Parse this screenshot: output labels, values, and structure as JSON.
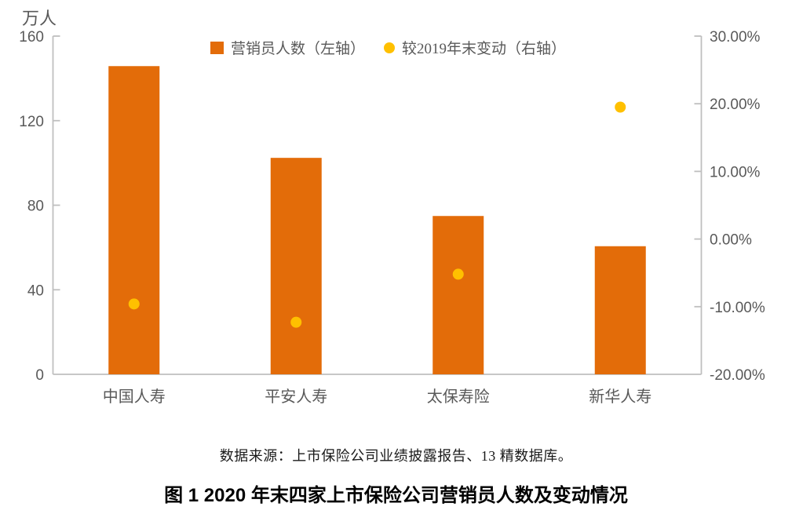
{
  "chart_data": {
    "type": "bar",
    "subtype": "bar-left-axis with scatter-right-axis combo",
    "categories": [
      "中国人寿",
      "平安人寿",
      "太保寿险",
      "新华人寿"
    ],
    "series": [
      {
        "name": "营销员人数（左轴）",
        "type": "bar",
        "axis": "left",
        "values": [
          145.8,
          102.4,
          74.9,
          60.6
        ],
        "color": "#E36C09"
      },
      {
        "name": "较2019年末变动（右轴）",
        "type": "scatter",
        "axis": "right",
        "values": [
          -9.6,
          -12.3,
          -5.2,
          19.5
        ],
        "color": "#FFC000"
      }
    ],
    "left_axis": {
      "unit": "万人",
      "min": 0,
      "max": 160,
      "tick_values": [
        0,
        40,
        80,
        120,
        160
      ],
      "tick_labels": [
        "0",
        "40",
        "80",
        "120",
        "160"
      ]
    },
    "right_axis": {
      "min": -20,
      "max": 30,
      "tick_values": [
        -20,
        -10,
        0,
        10,
        20,
        30
      ],
      "tick_labels": [
        "-20.00%",
        "-10.00%",
        "0.00%",
        "10.00%",
        "20.00%",
        "30.00%"
      ]
    },
    "grid": "off",
    "legend_position": "top-inside",
    "colors": {
      "bar": "#E36C09",
      "dot": "#FFC000",
      "axis_line": "#BFBFBF",
      "axis_text": "#595959"
    }
  },
  "footer": {
    "source": "数据来源：上市保险公司业绩披露报告、13 精数据库。",
    "caption": "图 1    2020 年末四家上市保险公司营销员人数及变动情况"
  }
}
